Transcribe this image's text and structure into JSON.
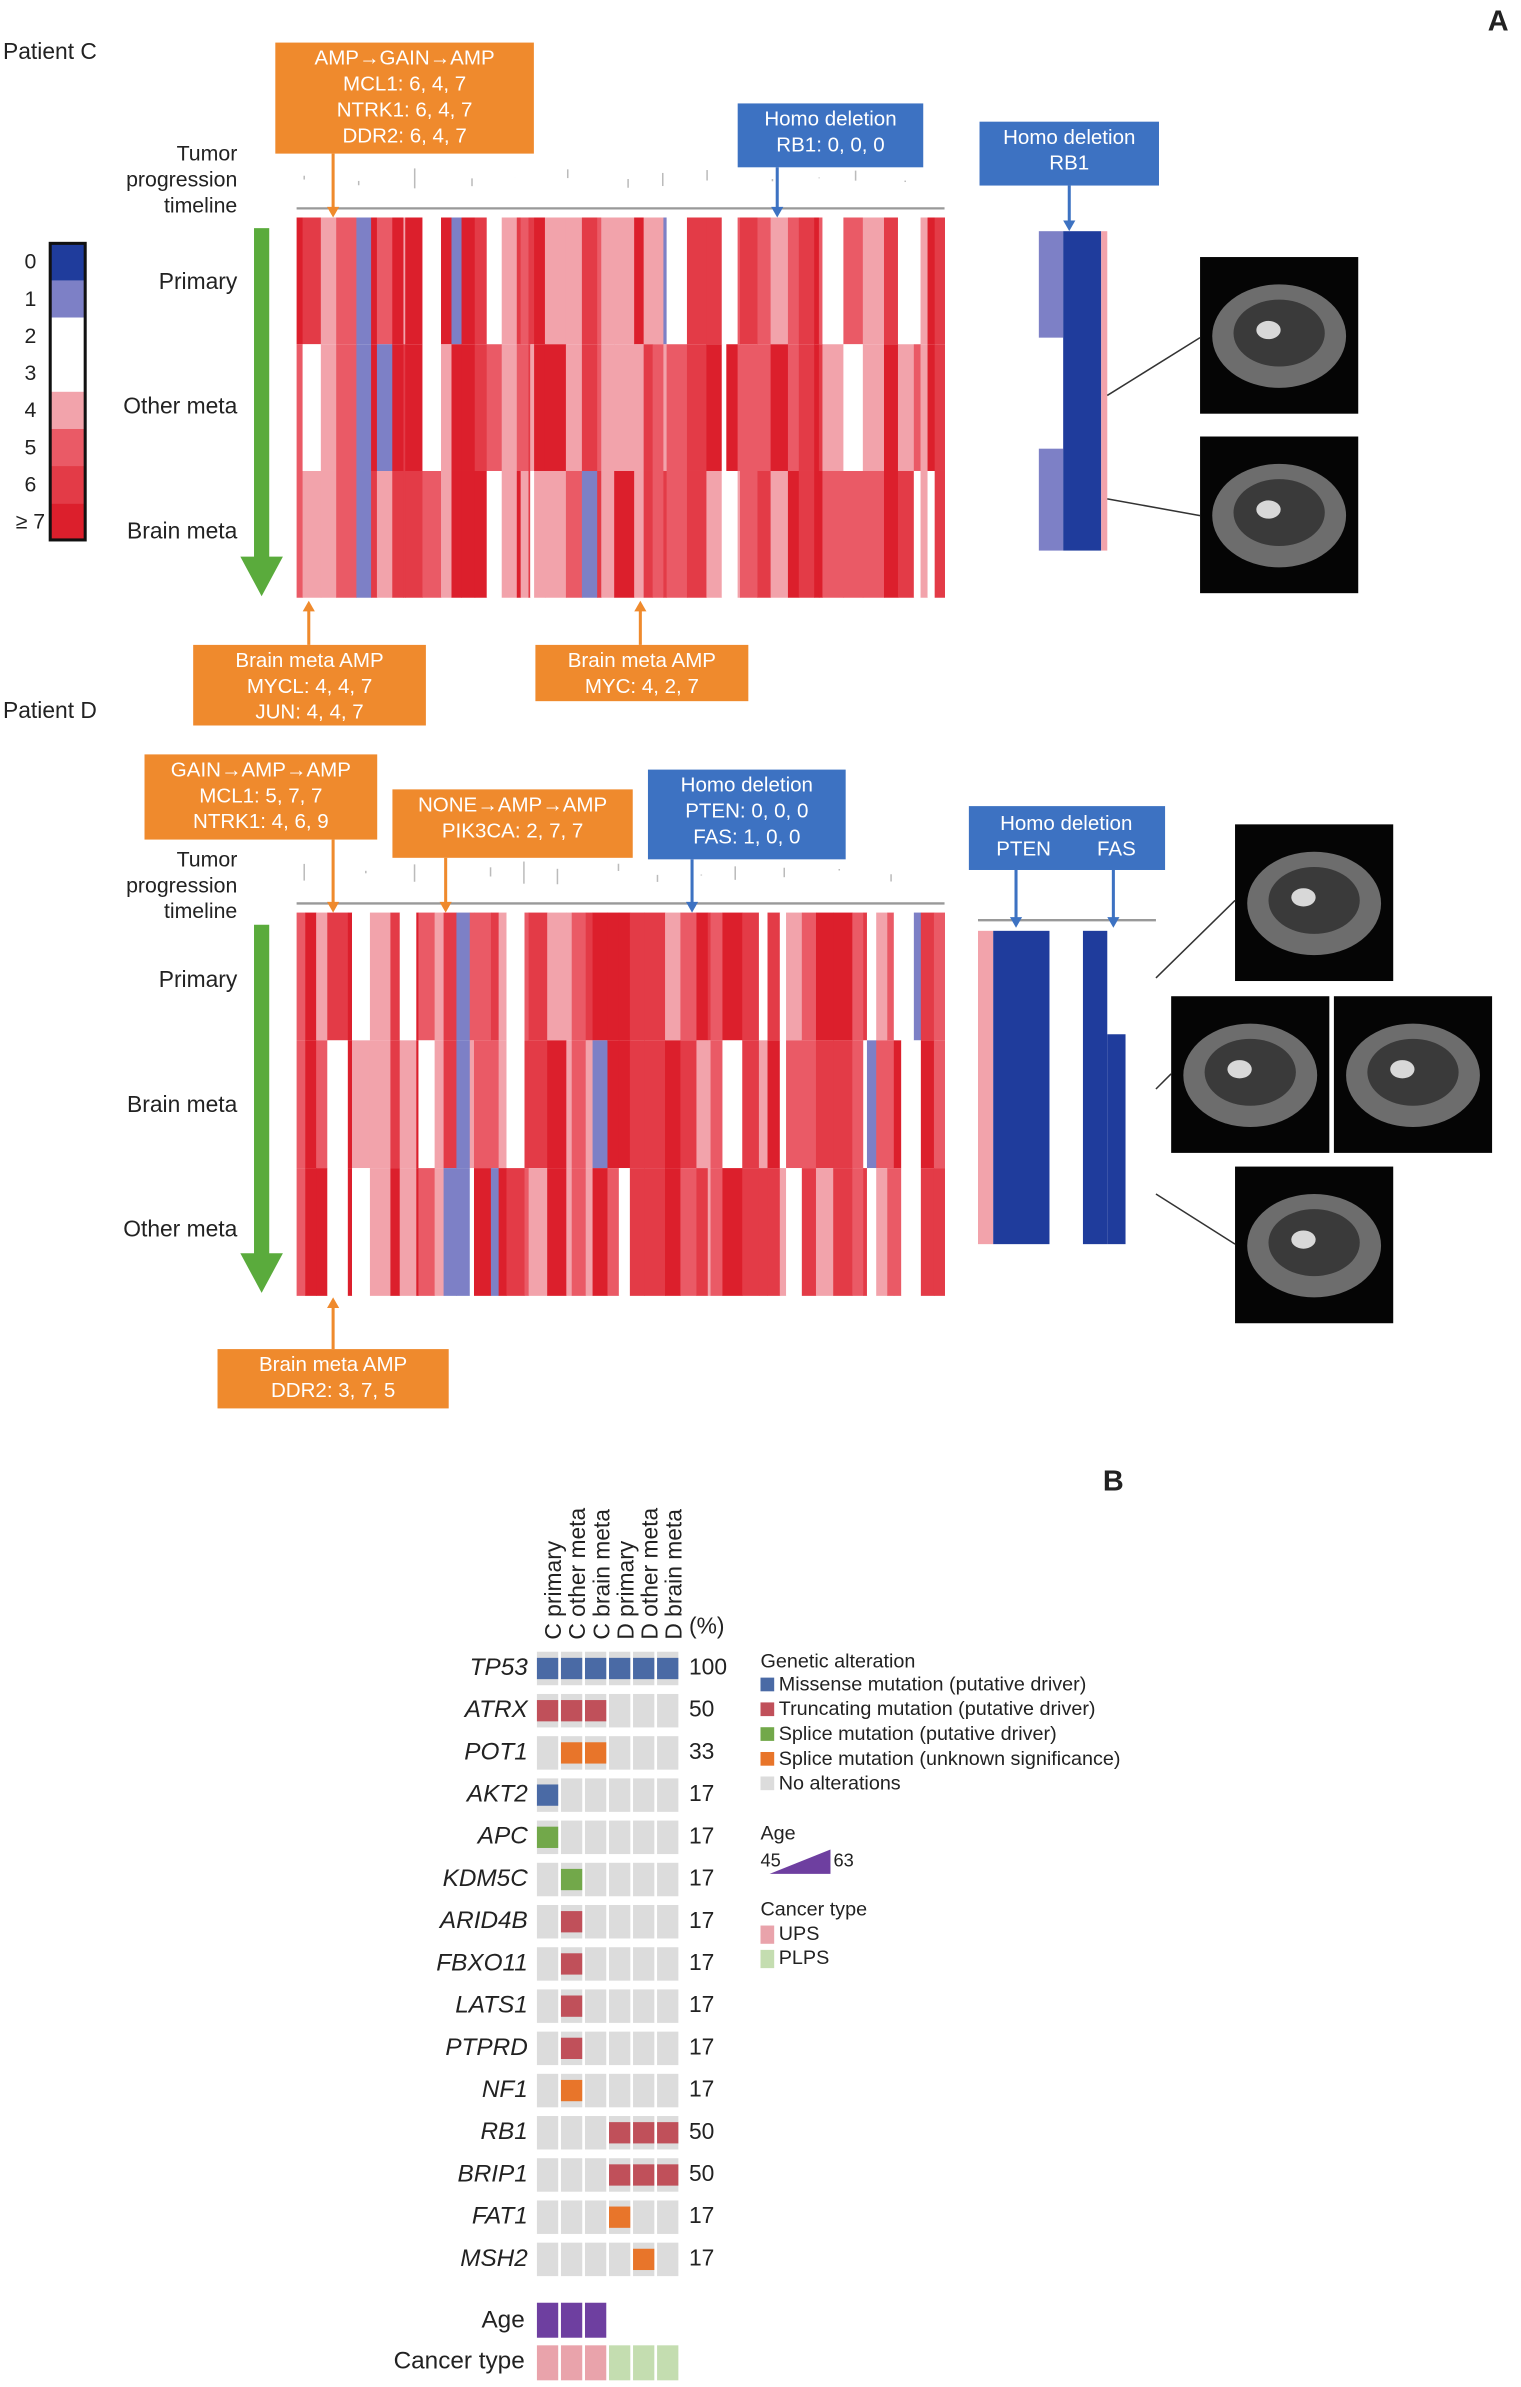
{
  "panel_a": {
    "label": "A",
    "timeline_color": "#5aab3c",
    "copy_number_scale": {
      "ticks": [
        0,
        1,
        2,
        3,
        4,
        5,
        6,
        {
          "value": 7,
          "label": "≥ 7"
        }
      ],
      "colors": [
        "#1f3c9c",
        "#7d80c6",
        "#ffffff",
        "#ffffff",
        "#f2a3ab",
        "#ea5a66",
        "#e33b47",
        "#dc1f2c"
      ]
    },
    "patients": [
      {
        "name": "Patient C",
        "timeline": [
          "Tumor",
          "progression",
          "timeline"
        ],
        "samples": [
          "Primary",
          "Other meta",
          "Brain meta"
        ],
        "callouts": [
          {
            "color": "#ef8a2d",
            "lines": [
              "AMP→GAIN→AMP",
              "MCL1: 6, 4, 7",
              "NTRK1: 6, 4, 7",
              "DDR2: 6, 4, 7"
            ]
          },
          {
            "color": "#3d72c2",
            "lines": [
              "Homo deletion",
              "RB1: 0, 0, 0"
            ]
          },
          {
            "color": "#3d72c2",
            "lines": [
              "Homo deletion",
              "RB1"
            ]
          },
          {
            "color": "#ef8a2d",
            "lines": [
              "Brain meta AMP",
              "MYCL: 4, 4, 7",
              "JUN: 4, 4, 7"
            ]
          },
          {
            "color": "#ef8a2d",
            "lines": [
              "Brain meta AMP",
              "MYC: 4, 2, 7"
            ]
          }
        ]
      },
      {
        "name": "Patient D",
        "timeline": [
          "Tumor",
          "progression",
          "timeline"
        ],
        "samples": [
          "Primary",
          "Brain meta",
          "Other meta"
        ],
        "callouts": [
          {
            "color": "#ef8a2d",
            "lines": [
              "GAIN→AMP→AMP",
              "MCL1: 5, 7, 7",
              "NTRK1: 4, 6, 9"
            ]
          },
          {
            "color": "#ef8a2d",
            "lines": [
              "NONE→AMP→AMP",
              "PIK3CA: 2, 7, 7"
            ]
          },
          {
            "color": "#3d72c2",
            "lines": [
              "Homo deletion",
              "PTEN: 0, 0, 0",
              "FAS: 1, 0, 0"
            ]
          },
          {
            "color": "#3d72c2",
            "lines": [
              "Homo deletion",
              "PTEN",
              "FAS"
            ]
          },
          {
            "color": "#ef8a2d",
            "lines": [
              "Brain meta AMP",
              "DDR2: 3, 7, 5"
            ]
          }
        ]
      }
    ]
  },
  "panel_b": {
    "label": "B",
    "samples": [
      "C primary",
      "C other meta",
      "C brain meta",
      "D primary",
      "D other meta",
      "D brain meta"
    ],
    "percent_unit": "(%)",
    "genes": [
      {
        "name": "TP53",
        "percent": 100,
        "alterations": [
          0,
          0,
          0,
          0,
          0,
          0
        ]
      },
      {
        "name": "ATRX",
        "percent": 50,
        "alterations": [
          1,
          1,
          1,
          null,
          null,
          null
        ]
      },
      {
        "name": "POT1",
        "percent": 33,
        "alterations": [
          null,
          3,
          3,
          null,
          null,
          null
        ]
      },
      {
        "name": "AKT2",
        "percent": 17,
        "alterations": [
          0,
          null,
          null,
          null,
          null,
          null
        ]
      },
      {
        "name": "APC",
        "percent": 17,
        "alterations": [
          2,
          null,
          null,
          null,
          null,
          null
        ]
      },
      {
        "name": "KDM5C",
        "percent": 17,
        "alterations": [
          null,
          2,
          null,
          null,
          null,
          null
        ]
      },
      {
        "name": "ARID4B",
        "percent": 17,
        "alterations": [
          null,
          1,
          null,
          null,
          null,
          null
        ]
      },
      {
        "name": "FBXO11",
        "percent": 17,
        "alterations": [
          null,
          1,
          null,
          null,
          null,
          null
        ]
      },
      {
        "name": "LATS1",
        "percent": 17,
        "alterations": [
          null,
          1,
          null,
          null,
          null,
          null
        ]
      },
      {
        "name": "PTPRD",
        "percent": 17,
        "alterations": [
          null,
          1,
          null,
          null,
          null,
          null
        ]
      },
      {
        "name": "NF1",
        "percent": 17,
        "alterations": [
          null,
          3,
          null,
          null,
          null,
          null
        ]
      },
      {
        "name": "RB1",
        "percent": 50,
        "alterations": [
          null,
          null,
          null,
          1,
          1,
          1
        ]
      },
      {
        "name": "BRIP1",
        "percent": 50,
        "alterations": [
          null,
          null,
          null,
          1,
          1,
          1
        ]
      },
      {
        "name": "FAT1",
        "percent": 17,
        "alterations": [
          null,
          null,
          null,
          3,
          null,
          null
        ]
      },
      {
        "name": "MSH2",
        "percent": 17,
        "alterations": [
          null,
          null,
          null,
          null,
          3,
          null
        ]
      }
    ],
    "legend_title": "Genetic alteration",
    "alteration_types": [
      {
        "label": "Missense mutation (putative driver)",
        "color": "#4a6aa5"
      },
      {
        "label": "Truncating mutation (putative driver)",
        "color": "#c0505a"
      },
      {
        "label": "Splice mutation (putative driver)",
        "color": "#72a84a"
      },
      {
        "label": "Splice mutation (unknown significance)",
        "color": "#e8752a"
      }
    ],
    "no_alteration": {
      "label": "No alterations",
      "color": "#dcdcdc"
    },
    "age": {
      "label": "Age",
      "min": 45,
      "max": 63,
      "color": "#6e3fa0",
      "cells": [
        true,
        true,
        true,
        false,
        false,
        false
      ]
    },
    "cancer_type": {
      "label": "Cancer type",
      "types": [
        {
          "label": "UPS",
          "color": "#e9a3ab"
        },
        {
          "label": "PLPS",
          "color": "#c4ddb0"
        }
      ],
      "cells": [
        0,
        0,
        0,
        1,
        1,
        1
      ]
    }
  }
}
